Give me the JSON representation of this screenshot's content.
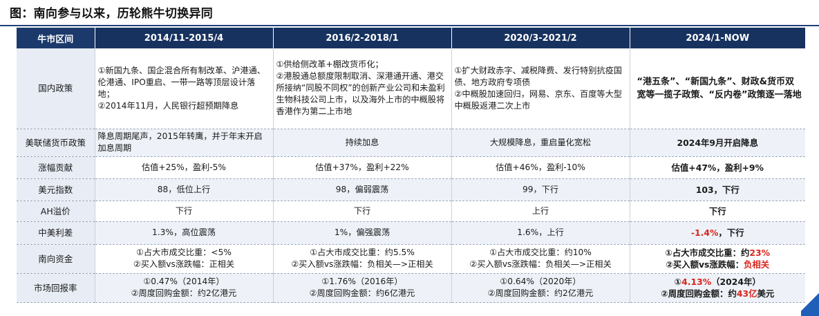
{
  "title": "图：南向参与以来，历轮熊牛切换异同",
  "table": {
    "header": [
      "牛市区间",
      "2014/11-2015/4",
      "2016/2-2018/1",
      "2020/3-2021/2",
      "2024/1-NOW"
    ],
    "rows": [
      {
        "label": "国内政策",
        "cells": [
          "①新国九条、国企混合所有制改革、沪港通、伦港通、IPO重启、一带一路等顶层设计落地；\n②2014年11月，人民银行超预期降息",
          "①供给侧改革+棚改货币化；\n②港股通总额度限制取消、深港通开通、港交所接纳“同股不同权”的创新产业公司和未盈利生物科技公司上市，以及海外上市的中概股将香港作为第二上市地",
          "①扩大财政赤字、减税降费、发行特别抗疫国债、地方政府专项债\n②中概股加速回归，网易、京东、百度等大型中概股返港二次上市",
          "“港五条”、“新国九条”、财政&货币双宽等一揽子政策、“反内卷”政策逐一落地"
        ]
      },
      {
        "label": "美联储货币政策",
        "cells": [
          "降息周期尾声，2015年转鹰，并于年末开启加息周期",
          "持续加息",
          "大规模降息，重启量化宽松",
          "2024年9月开启降息"
        ]
      },
      {
        "label": "涨幅贡献",
        "cells": [
          "估值+25%，盈利-5%",
          "估值+37%，盈利+22%",
          "估值+46%，盈利-10%",
          "估值+47%，盈利+9%"
        ]
      },
      {
        "label": "美元指数",
        "cells": [
          "88，低位上行",
          "98，偏弱震荡",
          "99，下行",
          "103，下行"
        ]
      },
      {
        "label": "AH溢价",
        "cells": [
          "下行",
          "下行",
          "上行",
          "下行"
        ]
      },
      {
        "label": "中美利差",
        "cells": [
          "1.3%，高位震荡",
          "1%，偏强震荡",
          "1.6%，上行",
          ""
        ],
        "last": {
          "red": "-1.4%",
          "rest": "，下行"
        }
      },
      {
        "label": "南向资金",
        "cells": [
          "①占大市成交比重：<5%\n②买入额vs涨跌幅：正相关",
          "①占大市成交比重：约5.5%\n②买入额vs涨跌幅：负相关—>正相关",
          "①占大市成交比重：约10%\n②买入额vs涨跌幅：负相关—>正相关",
          ""
        ],
        "last": {
          "line1_pre": "①占大市成交比重：约",
          "line1_red": "23%",
          "line2_pre": "②买入额vs涨跌幅：",
          "line2_red": "负相关"
        }
      },
      {
        "label": "市场回报率",
        "cells": [
          "①0.47%（2014年）\n②周度回购金额：约2亿港元",
          "①1.76%（2016年）\n②周度回购金额：约6亿港元",
          "①0.64%（2020年）\n②周度回购金额：约2亿港元",
          ""
        ],
        "last": {
          "line1_pre": "①",
          "line1_red": "4.13%",
          "line1_post": "（2024年）",
          "line2_pre": "②周度回购金额：约",
          "line2_red": "43亿",
          "line2_post": "美元"
        }
      }
    ]
  }
}
